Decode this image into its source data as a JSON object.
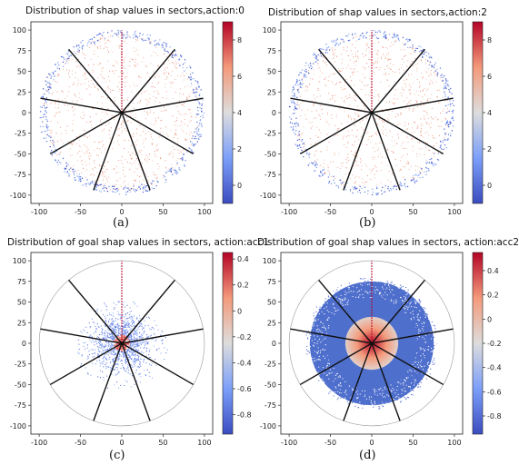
{
  "chart_data": [
    {
      "type": "scatter",
      "title": "Distribution of shap values in sectors,action:0",
      "caption": "(a)",
      "style": "ring",
      "xlim": [
        -110,
        110
      ],
      "ylim": [
        -110,
        110
      ],
      "xticks": [
        -100,
        -50,
        0,
        50,
        100
      ],
      "yticks": [
        100,
        75,
        50,
        25,
        0,
        -25,
        -50,
        -75,
        -100
      ],
      "colorbar": {
        "min": -1.0,
        "max": 9.0,
        "ticks": [
          8,
          6,
          4,
          2,
          0
        ]
      },
      "sector_angles_deg": [
        90,
        130,
        170,
        210,
        250,
        290,
        330,
        10,
        50
      ],
      "radius": 100
    },
    {
      "type": "scatter",
      "title": "Distribution of shap values in sectors,action:2",
      "caption": "(b)",
      "style": "ring",
      "xlim": [
        -110,
        110
      ],
      "ylim": [
        -110,
        110
      ],
      "xticks": [
        -100,
        -50,
        0,
        50,
        100
      ],
      "yticks": [
        100,
        75,
        50,
        25,
        0,
        -25,
        -50,
        -75,
        -100
      ],
      "colorbar": {
        "min": -1.0,
        "max": 9.0,
        "ticks": [
          8,
          6,
          4,
          2,
          0
        ]
      },
      "sector_angles_deg": [
        90,
        130,
        170,
        210,
        250,
        290,
        330,
        10,
        50
      ],
      "radius": 100
    },
    {
      "type": "scatter",
      "title": "Distribution of goal shap values in sectors, action:acc1",
      "caption": "(c)",
      "style": "center",
      "xlim": [
        -110,
        110
      ],
      "ylim": [
        -110,
        110
      ],
      "xticks": [
        -100,
        -50,
        0,
        50,
        100
      ],
      "yticks": [
        100,
        75,
        50,
        25,
        0,
        -25,
        -50,
        -75,
        -100
      ],
      "colorbar": {
        "min": -0.95,
        "max": 0.45,
        "ticks": [
          0.4,
          0.2,
          0.0,
          -0.2,
          -0.4,
          -0.6,
          -0.8
        ]
      },
      "sector_angles_deg": [
        90,
        130,
        170,
        210,
        250,
        290,
        330,
        10,
        50
      ],
      "radius": 100
    },
    {
      "type": "scatter",
      "title": "Distribution of goal shap values in sectors, action:acc2",
      "caption": "(d)",
      "style": "dense",
      "xlim": [
        -110,
        110
      ],
      "ylim": [
        -110,
        110
      ],
      "xticks": [
        -100,
        -50,
        0,
        50,
        100
      ],
      "yticks": [
        100,
        75,
        50,
        25,
        0,
        -25,
        -50,
        -75,
        -100
      ],
      "colorbar": {
        "min": -0.95,
        "max": 0.55,
        "ticks": [
          0.4,
          0.2,
          0.0,
          -0.2,
          -0.4,
          -0.6,
          -0.8
        ]
      },
      "sector_angles_deg": [
        90,
        130,
        170,
        210,
        250,
        290,
        330,
        10,
        50
      ],
      "radius": 100
    }
  ],
  "colors": {
    "cold": "#3b4cc0",
    "warm": "#b40426",
    "mid": "#dddddd"
  }
}
